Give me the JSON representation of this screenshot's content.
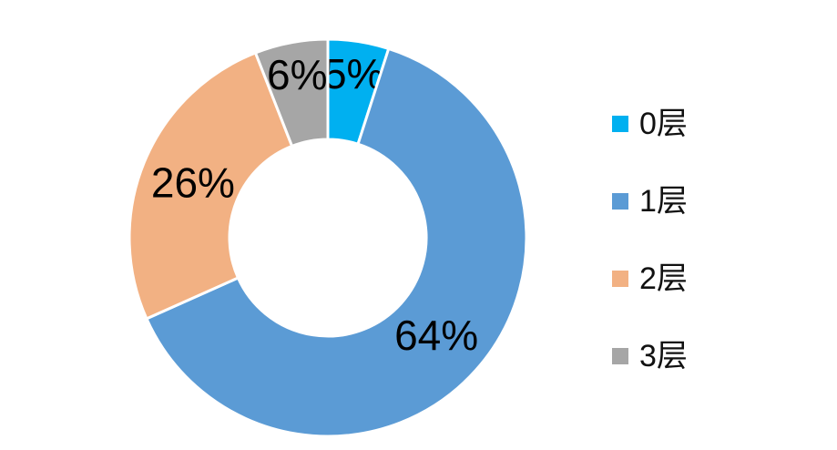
{
  "chart_data": {
    "type": "pie",
    "subtype": "donut",
    "title": "",
    "categories": [
      "0层",
      "1层",
      "2层",
      "3层"
    ],
    "values": [
      5,
      64,
      26,
      6
    ],
    "data_labels": [
      "5%",
      "64%",
      "26%",
      "6%"
    ],
    "colors": [
      "#00B0F0",
      "#5B9BD5",
      "#F2B183",
      "#A6A6A6"
    ],
    "label_color": "#000000",
    "separator_color": "#FFFFFF",
    "background": "#FFFFFF",
    "start_angle_deg": 0,
    "direction": "clockwise",
    "hole_ratio": 0.5,
    "legend_position": "right",
    "grid": false
  }
}
